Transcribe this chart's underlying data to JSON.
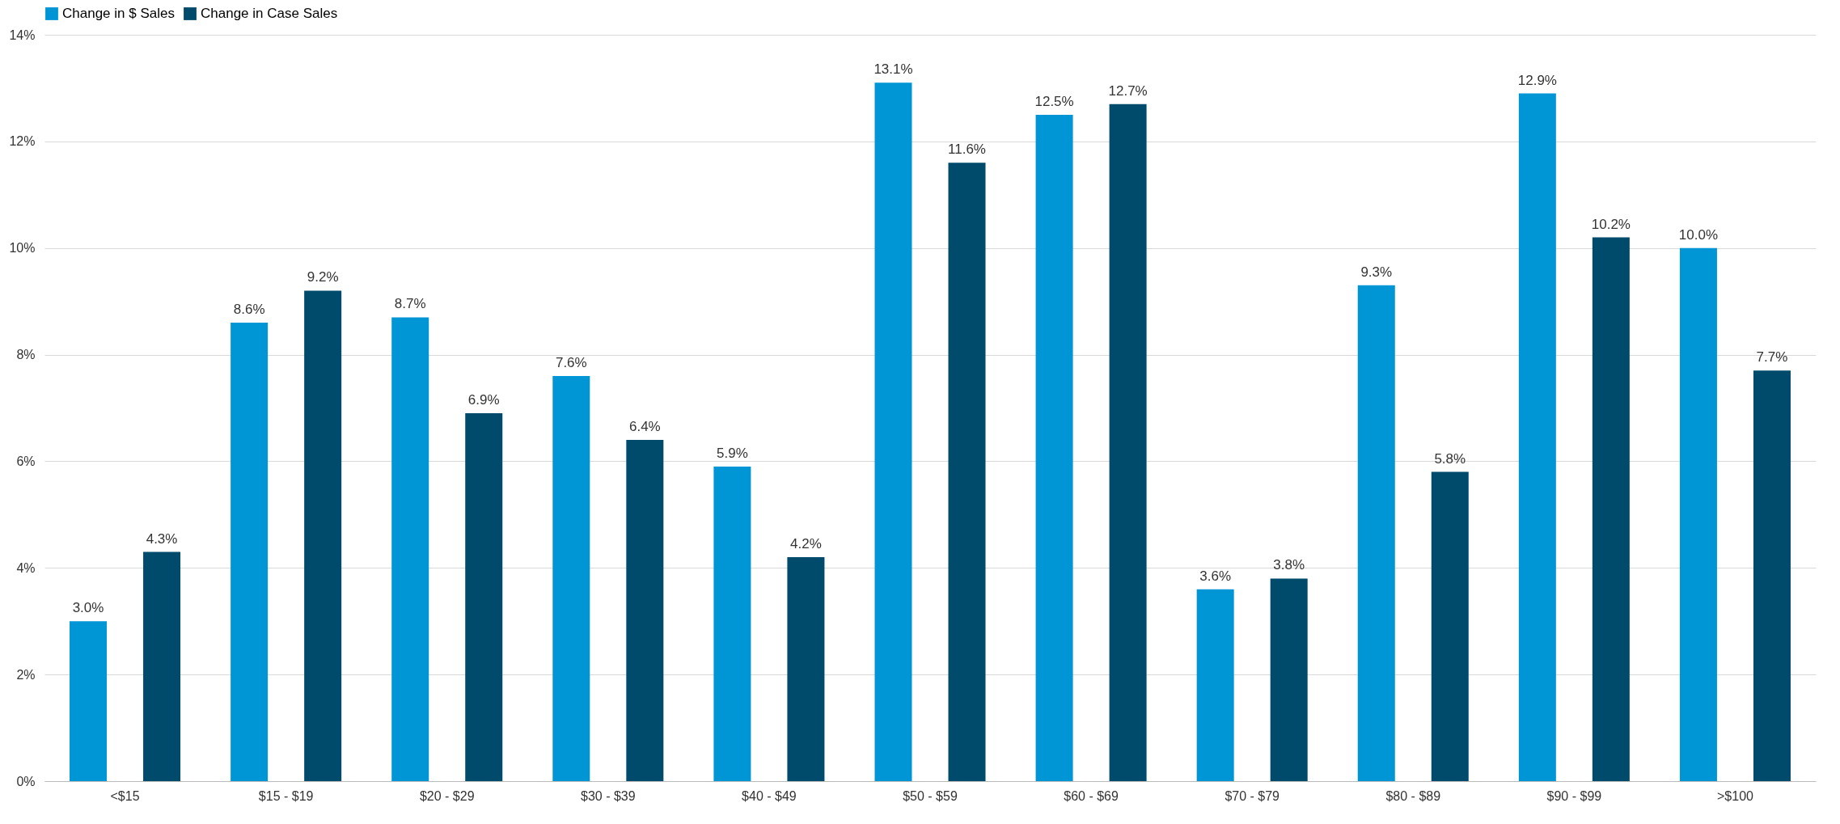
{
  "chart_data": {
    "type": "bar",
    "categories": [
      "<$15",
      "$15 - $19",
      "$20 - $29",
      "$30 - $39",
      "$40 - $49",
      "$50 - $59",
      "$60 - $69",
      "$70 - $79",
      "$80 - $89",
      "$90 - $99",
      ">$100"
    ],
    "series": [
      {
        "name": "Change in $ Sales",
        "color": "#0096d6",
        "values": [
          3.0,
          8.6,
          8.7,
          7.6,
          5.9,
          13.1,
          12.5,
          3.6,
          9.3,
          12.9,
          10.0
        ],
        "value_labels": [
          "3.0%",
          "8.6%",
          "8.7%",
          "7.6%",
          "5.9%",
          "13.1%",
          "12.5%",
          "3.6%",
          "9.3%",
          "12.9%",
          "10.0%"
        ]
      },
      {
        "name": "Change in Case Sales",
        "color": "#004b6b",
        "values": [
          4.3,
          9.2,
          6.9,
          6.4,
          4.2,
          11.6,
          12.7,
          3.8,
          5.8,
          10.2,
          7.7
        ],
        "value_labels": [
          "4.3%",
          "9.2%",
          "6.9%",
          "6.4%",
          "4.2%",
          "11.6%",
          "12.7%",
          "3.8%",
          "5.8%",
          "10.2%",
          "7.7%"
        ]
      }
    ],
    "ylim": [
      0,
      14
    ],
    "yticks": [
      {
        "value": 0,
        "label": "0%"
      },
      {
        "value": 2,
        "label": "2%"
      },
      {
        "value": 4,
        "label": "4%"
      },
      {
        "value": 6,
        "label": "6%"
      },
      {
        "value": 8,
        "label": "8%"
      },
      {
        "value": 10,
        "label": "10%"
      },
      {
        "value": 12,
        "label": "12%"
      },
      {
        "value": 14,
        "label": "14%"
      }
    ],
    "grid": "y",
    "legend": "top"
  }
}
